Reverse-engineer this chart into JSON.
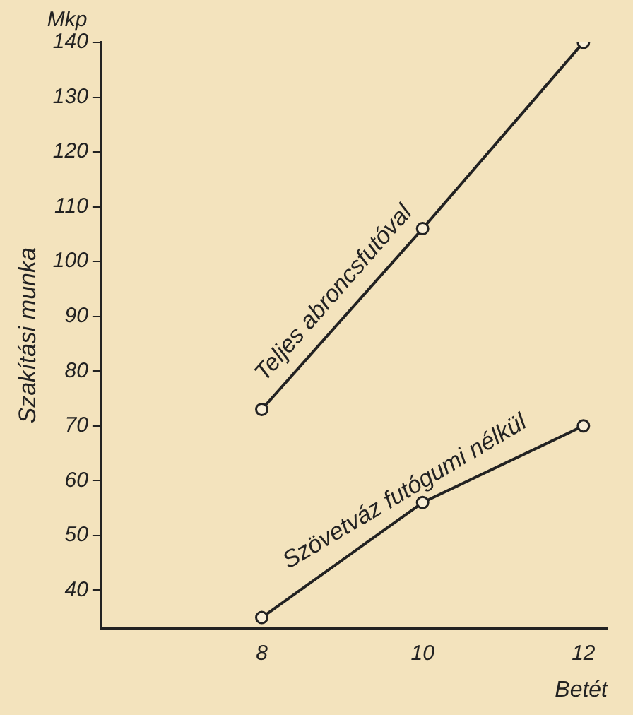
{
  "chart_data": {
    "type": "line",
    "xlabel": "Betét",
    "ylabel": "Szakítási munka",
    "annotations": [
      "Mkp"
    ],
    "x": [
      8,
      10,
      12
    ],
    "series": [
      {
        "name": "Teljes abroncsfutóval",
        "color": "#222222",
        "values": [
          73,
          106,
          140
        ]
      },
      {
        "name": "Szövetváz futógumi nélkül",
        "color": "#222222",
        "values": [
          35,
          56,
          70
        ]
      }
    ],
    "xlim": [
      6,
      12.3
    ],
    "xticks": [
      8,
      10,
      12
    ],
    "ylim": [
      33,
      140
    ],
    "yticks": [
      40,
      50,
      60,
      70,
      80,
      90,
      100,
      110,
      120,
      130,
      140
    ],
    "grid": false,
    "legend": false,
    "marker": "circle",
    "line_style": "solid"
  }
}
